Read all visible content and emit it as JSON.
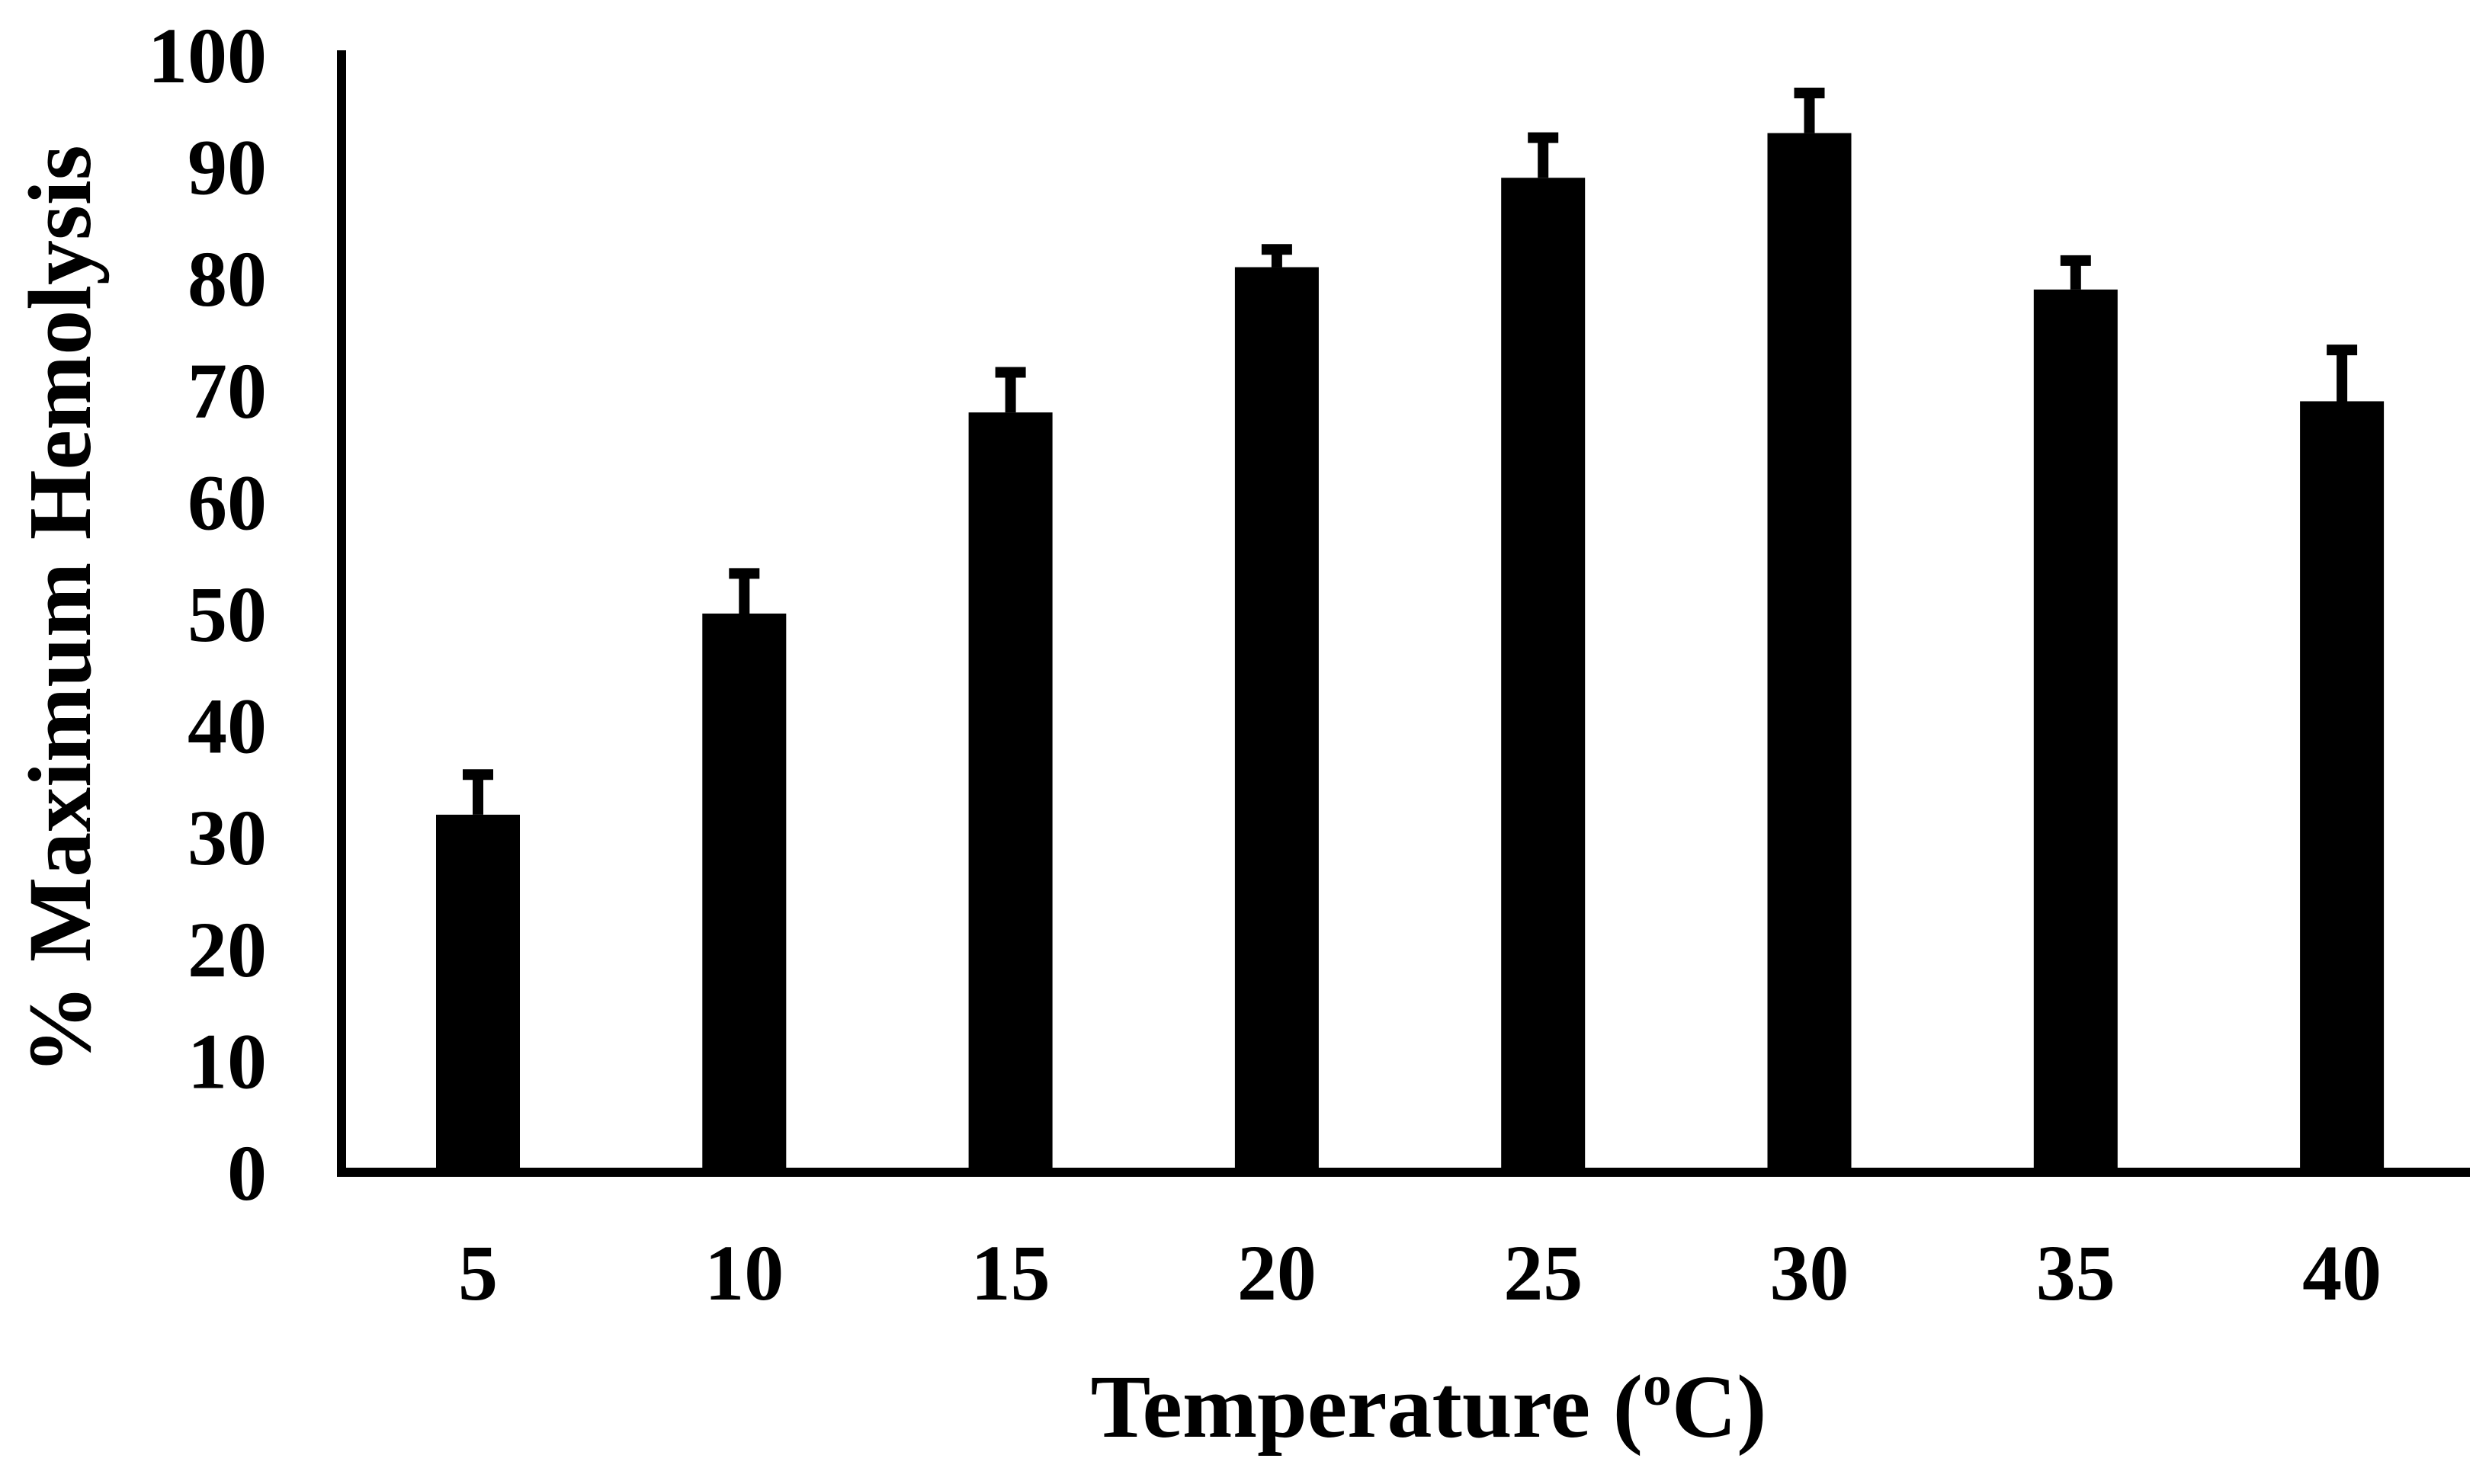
{
  "chart_data": {
    "type": "bar",
    "title": "",
    "xlabel": "Temperature (",
    "xlabel_superscript": "o",
    "xlabel_suffix": "C)",
    "ylabel": "% Maximum Hemolysis",
    "categories": [
      "5",
      "10",
      "15",
      "20",
      "25",
      "30",
      "35",
      "40"
    ],
    "values": [
      32,
      50,
      68,
      81,
      89,
      93,
      79,
      69
    ],
    "errors": [
      4,
      4,
      4,
      2,
      4,
      4,
      3,
      5
    ],
    "ylim": [
      0,
      100
    ],
    "yticks": [
      "0",
      "10",
      "20",
      "30",
      "40",
      "50",
      "60",
      "70",
      "80",
      "90",
      "100"
    ],
    "grid": false,
    "legend": "none",
    "bar_color": "#000000"
  }
}
